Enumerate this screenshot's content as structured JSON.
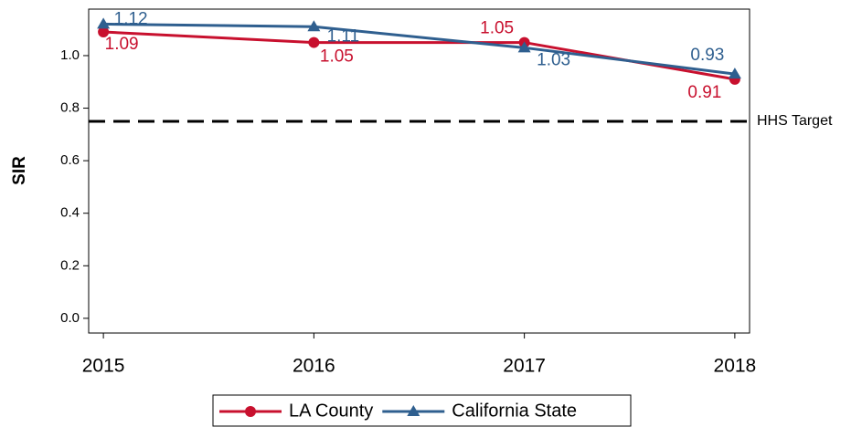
{
  "chart_data": {
    "type": "line",
    "x": [
      2015,
      2016,
      2017,
      2018
    ],
    "xlim": [
      2014.93,
      2018.07
    ],
    "xticks": [
      2015,
      2016,
      2017,
      2018
    ],
    "ylabel": "SIR",
    "ylim": [
      -0.056,
      1.177
    ],
    "yticks": [
      {
        "value": 0,
        "label": "0.0"
      },
      {
        "value": 0.2,
        "label": "0.2"
      },
      {
        "value": 0.4,
        "label": "0.4"
      },
      {
        "value": 0.6,
        "label": "0.6"
      },
      {
        "value": 0.8,
        "label": "0.8"
      },
      {
        "value": 1,
        "label": "1.0"
      }
    ],
    "reference_line": {
      "value": 0.75,
      "label": "HHS Target",
      "color": "#000000"
    },
    "series": [
      {
        "name": "LA County",
        "color": "#c8102e",
        "marker": "circle",
        "values": [
          1.09,
          1.05,
          1.05,
          0.91
        ]
      },
      {
        "name": "California State",
        "color": "#2f5f8f",
        "marker": "triangle",
        "values": [
          1.12,
          1.11,
          1.03,
          0.93
        ]
      }
    ],
    "legend": "bottom"
  }
}
